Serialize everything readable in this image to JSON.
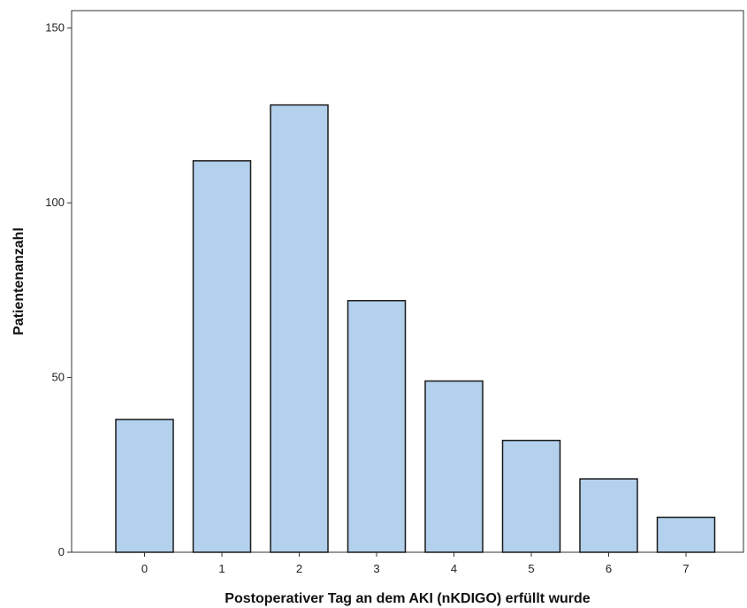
{
  "chart_data": {
    "type": "bar",
    "title": "",
    "xlabel": "Postoperativer Tag an dem AKI (nKDIGO) erfüllt wurde",
    "ylabel": "Patientenanzahl",
    "categories": [
      "0",
      "1",
      "2",
      "3",
      "4",
      "5",
      "6",
      "7"
    ],
    "values": [
      38,
      112,
      128,
      72,
      49,
      32,
      21,
      10
    ],
    "ylim": [
      0,
      155
    ],
    "yticks": [
      0,
      50,
      100,
      150
    ],
    "grid": false,
    "legend": "none",
    "bar_color": "#b3d0ec",
    "bar_edge_color": "#1a1a1a"
  }
}
